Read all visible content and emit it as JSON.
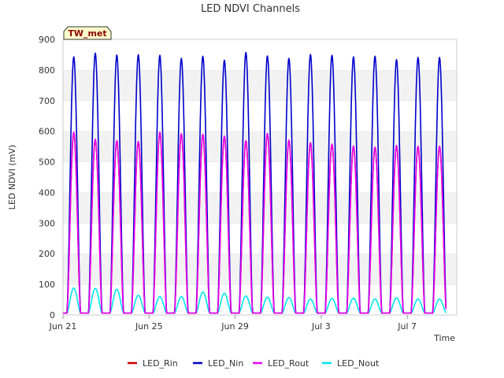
{
  "chart_data": {
    "type": "line",
    "title": "LED NDVI Channels",
    "xlabel": "Time",
    "ylabel": "LED NDVI (mV)",
    "ylim": [
      0,
      900
    ],
    "yticks": [
      0,
      100,
      200,
      300,
      400,
      500,
      600,
      700,
      800,
      900
    ],
    "xlim": [
      "2024-06-21",
      "2024-07-09"
    ],
    "xticks": [
      "Jun 21",
      "Jun 25",
      "Jun 29",
      "Jul 3",
      "Jul 7"
    ],
    "grid": "horizontal bands",
    "legend_position": "bottom",
    "tag": "TW_met",
    "day_peaks_x": [
      "06-21",
      "06-22",
      "06-23",
      "06-24",
      "06-25",
      "06-26",
      "06-27",
      "06-28",
      "06-29",
      "06-30",
      "07-01",
      "07-02",
      "07-03",
      "07-04",
      "07-05",
      "07-06",
      "07-07",
      "07-08"
    ],
    "series": [
      {
        "name": "LED_Rin",
        "color": "#cc0000",
        "peaks": [
          595,
          572,
          568,
          566,
          596,
          591,
          589,
          583,
          568,
          592,
          570,
          562,
          557,
          551,
          547,
          553,
          550,
          550
        ]
      },
      {
        "name": "LED_Nin",
        "color": "#0000cc",
        "peaks": [
          843,
          855,
          849,
          850,
          848,
          838,
          845,
          832,
          857,
          846,
          838,
          851,
          848,
          843,
          845,
          834,
          841,
          841
        ]
      },
      {
        "name": "LED_Rout",
        "color": "#ee00ee",
        "peaks": [
          597,
          574,
          569,
          567,
          597,
          592,
          590,
          584,
          569,
          593,
          571,
          563,
          558,
          552,
          548,
          554,
          551,
          551
        ]
      },
      {
        "name": "LED_Nout",
        "color": "#00e5ee",
        "peaks": [
          88,
          87,
          84,
          64,
          60,
          60,
          75,
          71,
          62,
          58,
          57,
          52,
          54,
          55,
          52,
          56,
          52,
          52
        ]
      }
    ]
  }
}
